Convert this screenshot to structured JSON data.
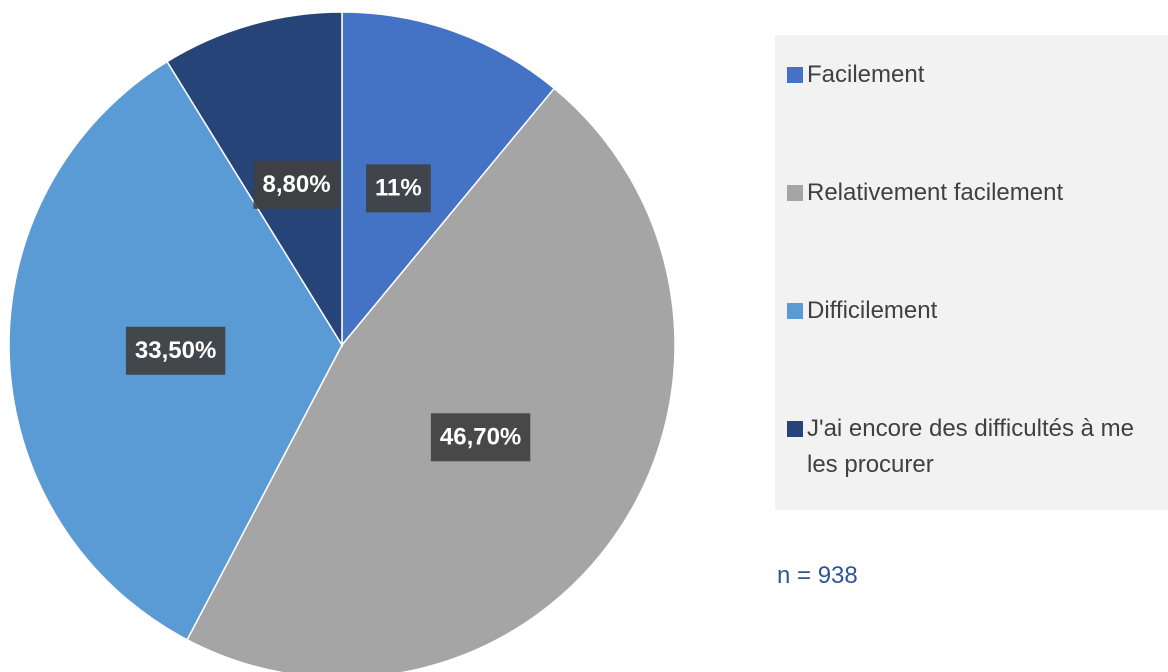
{
  "chart_data": {
    "type": "pie",
    "categories": [
      "Facilement",
      "Relativement facilement",
      "Difficilement",
      "J'ai encore des difficultés à me les procurer"
    ],
    "values": [
      11,
      46.7,
      33.5,
      8.8
    ],
    "value_labels": [
      "11%",
      "46,70%",
      "33,50%",
      "8,80%"
    ],
    "colors": [
      "#4472c4",
      "#a5a5a5",
      "#5b9bd5",
      "#264478"
    ],
    "annotation": "n = 938"
  }
}
